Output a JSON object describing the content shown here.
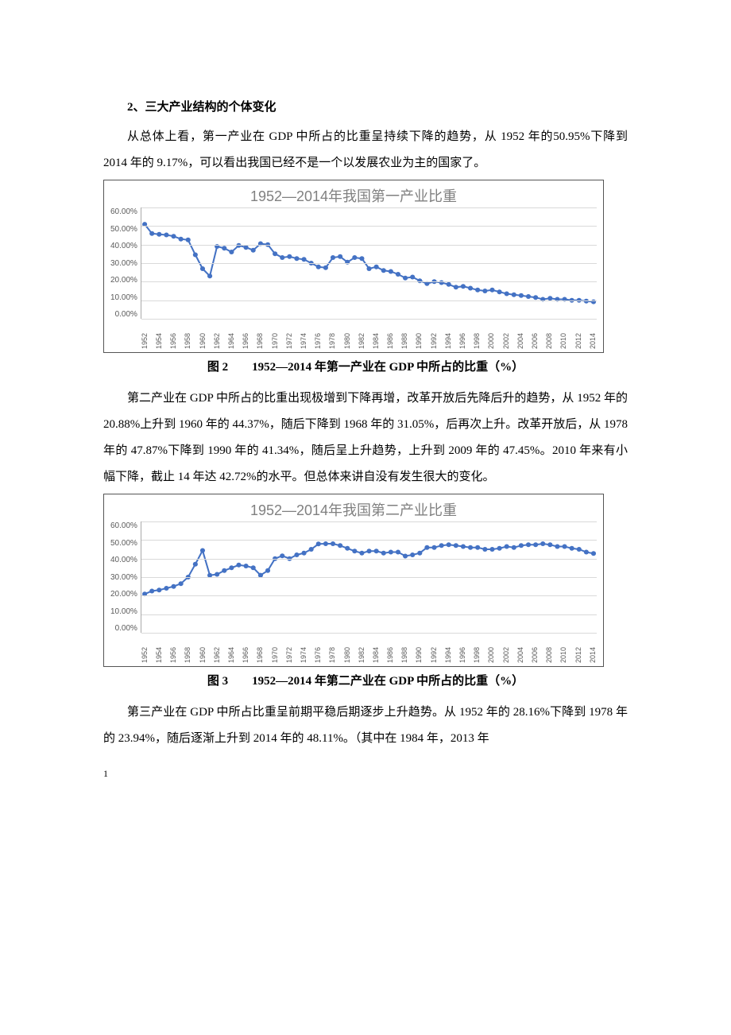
{
  "heading": "2、三大产业结构的个体变化",
  "para1": "从总体上看，第一产业在 GDP 中所占的比重呈持续下降的趋势，从 1952 年的50.95%下降到 2014 年的 9.17%，可以看出我国已经不是一个以发展农业为主的国家了。",
  "chart1": {
    "type": "line",
    "title": "1952—2014年我国第一产业比重",
    "title_color": "#808080",
    "title_fontsize": 18,
    "line_color": "#4472c4",
    "marker_color": "#4472c4",
    "marker_size": 3,
    "line_width": 2,
    "background_color": "#ffffff",
    "grid_color": "#d9d9d9",
    "axis_label_color": "#595959",
    "axis_fontsize": 10,
    "ylim": [
      0,
      60
    ],
    "ytick_step": 10,
    "y_ticks": [
      "60.00%",
      "50.00%",
      "40.00%",
      "30.00%",
      "20.00%",
      "10.00%",
      "0.00%"
    ],
    "x_labels": [
      "1952",
      "1954",
      "1956",
      "1958",
      "1960",
      "1962",
      "1964",
      "1966",
      "1968",
      "1970",
      "1972",
      "1974",
      "1976",
      "1978",
      "1980",
      "1982",
      "1984",
      "1986",
      "1988",
      "1990",
      "1992",
      "1994",
      "1996",
      "1998",
      "2000",
      "2002",
      "2004",
      "2006",
      "2008",
      "2010",
      "2012",
      "2014"
    ],
    "values": [
      50.95,
      46.0,
      45.5,
      45.2,
      44.5,
      43.0,
      42.5,
      34.5,
      27.0,
      23.0,
      39.0,
      38.0,
      36.0,
      39.5,
      38.5,
      37.0,
      40.5,
      40.0,
      35.0,
      33.0,
      33.5,
      32.5,
      32.0,
      30.0,
      28.0,
      27.5,
      33.0,
      33.5,
      30.5,
      33.0,
      32.5,
      27.0,
      28.0,
      26.0,
      25.5,
      24.0,
      22.0,
      22.5,
      20.5,
      19.0,
      20.0,
      19.5,
      18.5,
      17.0,
      17.5,
      16.5,
      15.5,
      15.0,
      15.5,
      14.5,
      13.5,
      13.0,
      12.5,
      12.0,
      11.5,
      10.5,
      11.0,
      10.5,
      10.5,
      10.0,
      10.0,
      9.5,
      9.17
    ]
  },
  "caption1": "图 2　　1952—2014 年第一产业在 GDP 中所占的比重（%）",
  "para2": "第二产业在 GDP 中所占的比重出现极增到下降再增，改革开放后先降后升的趋势，从 1952 年的 20.88%上升到 1960 年的 44.37%，随后下降到 1968 年的 31.05%，后再次上升。改革开放后，从 1978 年的 47.87%下降到 1990 年的 41.34%，随后呈上升趋势，上升到 2009 年的 47.45%。2010 年来有小幅下降，截止 14 年达 42.72%的水平。但总体来讲自没有发生很大的变化。",
  "chart2": {
    "type": "line",
    "title": "1952—2014年我国第二产业比重",
    "title_color": "#808080",
    "title_fontsize": 18,
    "line_color": "#4472c4",
    "marker_color": "#4472c4",
    "marker_size": 3,
    "line_width": 2,
    "background_color": "#ffffff",
    "grid_color": "#d9d9d9",
    "axis_label_color": "#595959",
    "axis_fontsize": 10,
    "ylim": [
      0,
      60
    ],
    "ytick_step": 10,
    "y_ticks": [
      "60.00%",
      "50.00%",
      "40.00%",
      "30.00%",
      "20.00%",
      "10.00%",
      "0.00%"
    ],
    "x_labels": [
      "1952",
      "1954",
      "1956",
      "1958",
      "1960",
      "1962",
      "1964",
      "1966",
      "1968",
      "1970",
      "1972",
      "1974",
      "1976",
      "1978",
      "1980",
      "1982",
      "1984",
      "1986",
      "1988",
      "1990",
      "1992",
      "1994",
      "1996",
      "1998",
      "2000",
      "2002",
      "2004",
      "2006",
      "2008",
      "2010",
      "2012",
      "2014"
    ],
    "values": [
      20.88,
      22.5,
      23.0,
      24.0,
      25.0,
      26.5,
      30.0,
      37.0,
      44.37,
      31.0,
      31.5,
      33.5,
      35.0,
      36.5,
      36.0,
      35.0,
      31.05,
      33.5,
      40.0,
      41.5,
      40.0,
      42.0,
      43.0,
      45.0,
      47.87,
      48.0,
      48.0,
      47.0,
      45.5,
      44.0,
      43.0,
      44.0,
      44.0,
      43.0,
      43.5,
      43.5,
      41.34,
      42.0,
      43.0,
      46.0,
      46.0,
      47.0,
      47.5,
      47.0,
      46.5,
      46.0,
      46.0,
      45.0,
      45.0,
      45.5,
      46.5,
      46.0,
      47.0,
      47.5,
      47.5,
      48.0,
      47.45,
      46.5,
      46.5,
      45.5,
      45.0,
      43.5,
      42.72
    ]
  },
  "caption2": "图 3　　1952—2014 年第二产业在 GDP 中所占的比重（%）",
  "para3": "第三产业在 GDP 中所占比重呈前期平稳后期逐步上升趋势。从 1952 年的 28.16%下降到 1978 年的 23.94%，随后逐渐上升到 2014 年的 48.11%。（其中在 1984 年，2013 年",
  "page_number": "1"
}
